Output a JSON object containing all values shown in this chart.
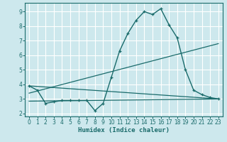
{
  "xlabel": "Humidex (Indice chaleur)",
  "bg_color": "#cde8ed",
  "line_color": "#1a6b6b",
  "grid_color": "#ffffff",
  "xlim": [
    -0.5,
    23.5
  ],
  "ylim": [
    1.8,
    9.6
  ],
  "xticks": [
    0,
    1,
    2,
    3,
    4,
    5,
    6,
    7,
    8,
    9,
    10,
    11,
    12,
    13,
    14,
    15,
    16,
    17,
    18,
    19,
    20,
    21,
    22,
    23
  ],
  "yticks": [
    2,
    3,
    4,
    5,
    6,
    7,
    8,
    9
  ],
  "line1_x": [
    0,
    1,
    2,
    3,
    4,
    5,
    6,
    7,
    8,
    9,
    10,
    11,
    12,
    13,
    14,
    15,
    16,
    17,
    18,
    19,
    20,
    21,
    22,
    23
  ],
  "line1_y": [
    3.9,
    3.6,
    2.7,
    2.8,
    2.9,
    2.9,
    2.9,
    2.9,
    2.2,
    2.7,
    4.5,
    6.3,
    7.5,
    8.4,
    9.0,
    8.8,
    9.2,
    8.1,
    7.2,
    5.0,
    3.6,
    3.3,
    3.1,
    3.0
  ],
  "line2_x": [
    0,
    23
  ],
  "line2_y": [
    2.85,
    3.0
  ],
  "line3_x": [
    0,
    23
  ],
  "line3_y": [
    3.4,
    6.8
  ],
  "line4_x": [
    0,
    23
  ],
  "line4_y": [
    3.9,
    3.0
  ]
}
